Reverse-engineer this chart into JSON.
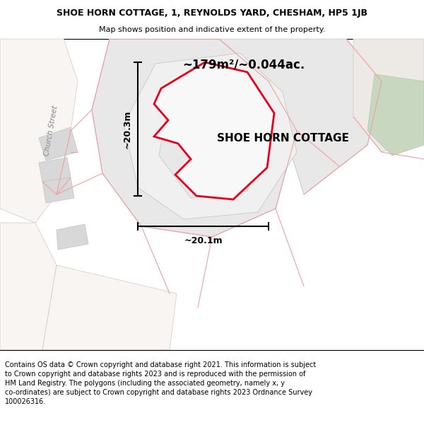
{
  "title_line1": "SHOE HORN COTTAGE, 1, REYNOLDS YARD, CHESHAM, HP5 1JB",
  "title_line2": "Map shows position and indicative extent of the property.",
  "property_label": "SHOE HORN COTTAGE",
  "area_label": "~179m²/~0.044ac.",
  "dim_horizontal": "~20.1m",
  "dim_vertical": "~20.3m",
  "street_label": "Church Street",
  "footer_text": "Contains OS data © Crown copyright and database right 2021. This information is subject to Crown copyright and database rights 2023 and is reproduced with the permission of HM Land Registry. The polygons (including the associated geometry, namely x, y co-ordinates) are subject to Crown copyright and database rights 2023 Ordnance Survey 100026316.",
  "red_color": "#e8001c",
  "red_light": "#f0a0a0",
  "gray_dark": "#c8c8c8",
  "gray_med": "#d8d8d8",
  "gray_light": "#e8e8e8",
  "gray_lighter": "#f0f0f0",
  "green_color": "#c8d8c0",
  "map_bg": "#f5f2ef",
  "white": "#ffffff"
}
